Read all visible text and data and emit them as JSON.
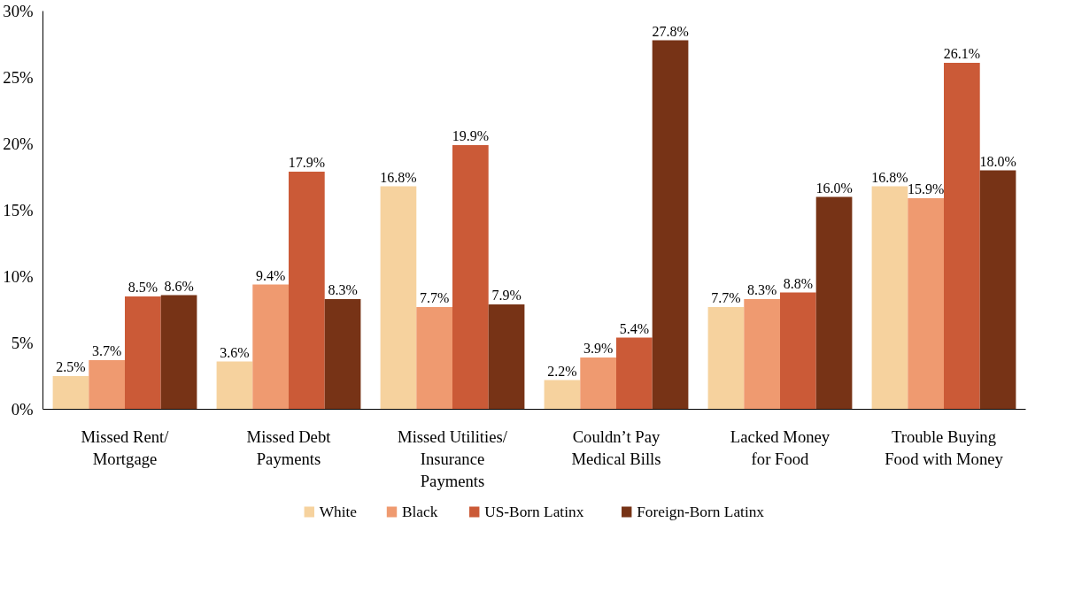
{
  "chart_data": {
    "type": "bar",
    "categories": [
      "Missed Rent/\nMortgage",
      "Missed Debt\nPayments",
      "Missed Utilities/\nInsurance\nPayments",
      "Couldn’t Pay\nMedical Bills",
      "Lacked Money\nfor Food",
      "Trouble Buying\nFood with Money"
    ],
    "series": [
      {
        "name": "White",
        "color": "#f6d29e",
        "values": [
          2.5,
          3.6,
          16.8,
          2.2,
          7.7,
          16.8
        ],
        "value_labels": [
          "2.5%",
          "3.6%",
          "16.8%",
          "2.2%",
          "7.7%",
          "16.8%"
        ]
      },
      {
        "name": "Black",
        "color": "#ef9a70",
        "values": [
          3.7,
          9.4,
          7.7,
          3.9,
          8.3,
          15.9
        ],
        "value_labels": [
          "3.7%",
          "9.4%",
          "7.7%",
          "3.9%",
          "8.3%",
          "15.9%"
        ]
      },
      {
        "name": "US-Born Latinx",
        "color": "#cb5a37",
        "values": [
          8.5,
          17.9,
          19.9,
          5.4,
          8.8,
          26.1
        ],
        "value_labels": [
          "8.5%",
          "17.9%",
          "19.9%",
          "5.4%",
          "8.8%",
          "26.1%"
        ]
      },
      {
        "name": "Foreign-Born Latinx",
        "color": "#773316",
        "values": [
          8.6,
          8.3,
          7.9,
          27.8,
          16.0,
          18.0
        ],
        "value_labels": [
          "8.6%",
          "8.3%",
          "7.9%",
          "27.8%",
          "16.0%",
          "18.0%"
        ]
      }
    ],
    "ylim": [
      0,
      30
    ],
    "yticks": [
      {
        "value": 0,
        "label": "0%"
      },
      {
        "value": 5,
        "label": "5%"
      },
      {
        "value": 10,
        "label": "10%"
      },
      {
        "value": 15,
        "label": "15%"
      },
      {
        "value": 20,
        "label": "20%"
      },
      {
        "value": 25,
        "label": "25%"
      },
      {
        "value": 30,
        "label": "30%"
      }
    ],
    "grid": false,
    "legend": "bottom"
  }
}
